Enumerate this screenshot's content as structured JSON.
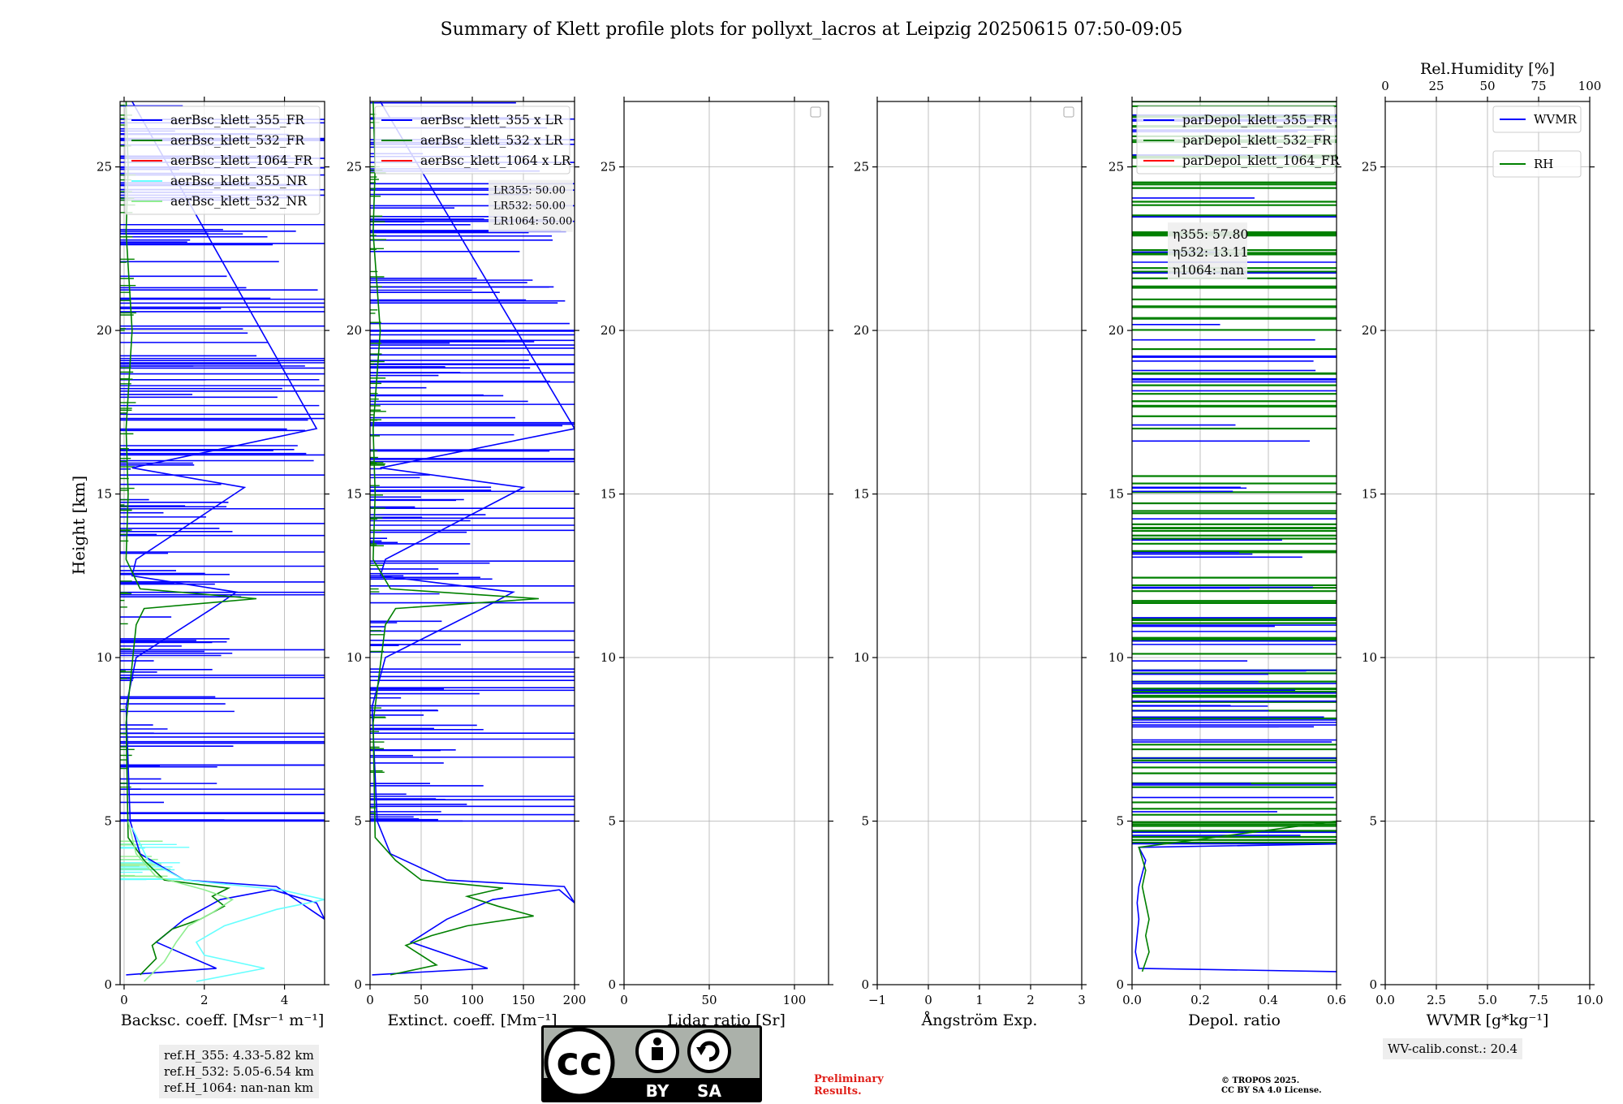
{
  "title": "Summary of Klett profile plots for pollyxt_lacros at Leipzig 20250615 07:50-09:05",
  "ylabel": "Height [km]",
  "colors": {
    "blue": "#0000ff",
    "green": "#008000",
    "red": "#ff0000",
    "cyan": "#66ffff",
    "lightgreen": "#90ee90"
  },
  "chart_data": [
    {
      "type": "line",
      "xlabel": "Backsc. coeff. [Msr⁻¹ m⁻¹]",
      "xlim": [
        -0.1,
        5
      ],
      "ylim": [
        0,
        27
      ],
      "xticks": [
        "0",
        "2",
        "4"
      ],
      "xtick_values": [
        0,
        2,
        4
      ],
      "yticks": [
        "0",
        "5",
        "10",
        "15",
        "20",
        "25"
      ],
      "ytick_values": [
        0,
        5,
        10,
        15,
        20,
        25
      ],
      "legend": [
        {
          "label": "aerBsc_klett_355_FR",
          "color": "#0000ff"
        },
        {
          "label": "aerBsc_klett_532_FR",
          "color": "#008000"
        },
        {
          "label": "aerBsc_klett_1064_FR",
          "color": "#ff0000"
        },
        {
          "label": "aerBsc_klett_355_NR",
          "color": "#66ffff"
        },
        {
          "label": "aerBsc_klett_532_NR",
          "color": "#90ee90"
        }
      ],
      "series": [
        {
          "name": "aerBsc_klett_355_FR",
          "color": "#0000ff",
          "x": [
            0.05,
            2.3,
            0.8,
            1.5,
            2.4,
            3.7,
            4.8,
            5.0,
            3.8,
            1.5,
            0.4,
            0.15,
            0.05,
            0.3,
            2.2,
            2.8,
            0.2,
            0.3,
            3.0,
            0.2,
            4.8,
            0.2
          ],
          "y": [
            0.3,
            0.5,
            1.3,
            2.0,
            2.6,
            2.9,
            2.5,
            2.0,
            3.0,
            3.2,
            4.0,
            5.0,
            8.5,
            10.0,
            11.5,
            12.0,
            12.5,
            13.0,
            15.2,
            15.8,
            17.0,
            27.0
          ]
        },
        {
          "name": "aerBsc_klett_532_FR",
          "color": "#008000",
          "x": [
            0.4,
            0.8,
            0.7,
            1.2,
            1.9,
            2.5,
            2.2,
            2.6,
            1.0,
            0.5,
            0.1,
            0.05,
            0.3,
            0.5,
            3.3,
            0.4,
            0.05,
            0.1,
            0.05,
            0.2,
            0.05,
            0.1,
            0.05
          ],
          "y": [
            0.3,
            0.8,
            1.2,
            1.7,
            2.0,
            2.4,
            2.7,
            2.95,
            3.2,
            3.8,
            4.5,
            8.0,
            11.0,
            11.5,
            11.8,
            12.1,
            13.0,
            15.0,
            17.0,
            20.0,
            23.0,
            25.0,
            27.0
          ]
        },
        {
          "name": "aerBsc_klett_355_NR",
          "color": "#66ffff",
          "x": [
            1.8,
            3.5,
            2.0,
            1.8,
            2.5,
            3.8,
            5.0,
            3.9,
            1.5,
            0.6,
            0.2
          ],
          "y": [
            0.1,
            0.5,
            0.9,
            1.3,
            1.8,
            2.3,
            2.6,
            2.9,
            3.2,
            3.8,
            4.8
          ]
        },
        {
          "name": "aerBsc_klett_532_NR",
          "color": "#90ee90",
          "x": [
            0.5,
            1.0,
            1.3,
            1.6,
            2.2,
            2.7,
            2.0,
            0.8,
            0.3,
            0.1
          ],
          "y": [
            0.1,
            0.7,
            1.3,
            1.8,
            2.2,
            2.6,
            2.9,
            3.3,
            4.0,
            5.0
          ]
        }
      ]
    },
    {
      "type": "line",
      "xlabel": "Extinct. coeff. [Mm⁻¹]",
      "xlim": [
        0,
        200
      ],
      "ylim": [
        0,
        27
      ],
      "xticks": [
        "0",
        "50",
        "100",
        "150",
        "200"
      ],
      "xtick_values": [
        0,
        50,
        100,
        150,
        200
      ],
      "yticks": [
        "0",
        "5",
        "10",
        "15",
        "20",
        "25"
      ],
      "ytick_values": [
        0,
        5,
        10,
        15,
        20,
        25
      ],
      "legend": [
        {
          "label": "aerBsc_klett_355 x LR",
          "color": "#0000ff"
        },
        {
          "label": "aerBsc_klett_532 x LR",
          "color": "#008000"
        },
        {
          "label": "aerBsc_klett_1064 x LR",
          "color": "#ff0000"
        }
      ],
      "annotation": [
        "LR355: 50.00",
        "LR532: 50.00",
        "LR1064: 50.00"
      ],
      "series": [
        {
          "name": "aerBsc_klett_355 x LR",
          "color": "#0000ff",
          "x": [
            2,
            115,
            40,
            75,
            120,
            185,
            200,
            190,
            75,
            20,
            7,
            2,
            15,
            110,
            140,
            10,
            15,
            150,
            10,
            200,
            10
          ],
          "y": [
            0.3,
            0.5,
            1.3,
            2.0,
            2.6,
            2.9,
            2.5,
            3.0,
            3.2,
            4.0,
            5.0,
            8.5,
            10.0,
            11.5,
            12.0,
            12.5,
            13.0,
            15.2,
            15.8,
            17.0,
            27.0
          ]
        },
        {
          "name": "aerBsc_klett_532 x LR",
          "color": "#008000",
          "x": [
            20,
            65,
            50,
            35,
            60,
            95,
            160,
            125,
            95,
            130,
            50,
            25,
            5,
            3,
            15,
            25,
            165,
            20,
            3,
            5,
            3,
            10,
            3,
            5,
            3
          ],
          "y": [
            0.3,
            0.6,
            0.9,
            1.2,
            1.5,
            1.8,
            2.1,
            2.4,
            2.7,
            2.95,
            3.2,
            3.8,
            4.5,
            8.0,
            11.0,
            11.5,
            11.8,
            12.1,
            13.0,
            15.0,
            17.0,
            20.0,
            23.0,
            25.0,
            27.0
          ]
        }
      ]
    },
    {
      "type": "line",
      "xlabel": "Lidar ratio [Sr]",
      "xlim": [
        0,
        120
      ],
      "ylim": [
        0,
        27
      ],
      "xticks": [
        "0",
        "50",
        "100"
      ],
      "xtick_values": [
        0,
        50,
        100
      ],
      "yticks": [
        "0",
        "5",
        "10",
        "15",
        "20",
        "25"
      ],
      "ytick_values": [
        0,
        5,
        10,
        15,
        20,
        25
      ],
      "legend": [],
      "series": []
    },
    {
      "type": "line",
      "xlabel": "Ångström Exp.",
      "xlim": [
        -1,
        3
      ],
      "ylim": [
        0,
        27
      ],
      "xticks": [
        "−1",
        "0",
        "1",
        "2",
        "3"
      ],
      "xtick_values": [
        -1,
        0,
        1,
        2,
        3
      ],
      "yticks": [
        "0",
        "5",
        "10",
        "15",
        "20",
        "25"
      ],
      "ytick_values": [
        0,
        5,
        10,
        15,
        20,
        25
      ],
      "legend": [],
      "series": []
    },
    {
      "type": "line",
      "xlabel": "Depol. ratio",
      "xlim": [
        0,
        0.6
      ],
      "ylim": [
        0,
        27
      ],
      "xticks": [
        "0.0",
        "0.2",
        "0.4",
        "0.6"
      ],
      "xtick_values": [
        0,
        0.2,
        0.4,
        0.6
      ],
      "yticks": [
        "0",
        "5",
        "10",
        "15",
        "20",
        "25"
      ],
      "ytick_values": [
        0,
        5,
        10,
        15,
        20,
        25
      ],
      "legend": [
        {
          "label": "parDepol_klett_355_FR",
          "color": "#0000ff"
        },
        {
          "label": "parDepol_klett_532_FR",
          "color": "#008000"
        },
        {
          "label": "parDepol_klett_1064_FR",
          "color": "#ff0000"
        }
      ],
      "annotation": [
        "η355: 57.80",
        "η532: 13.11",
        "η1064: nan"
      ],
      "series": [
        {
          "name": "parDepol_klett_355_FR",
          "color": "#0000ff",
          "x": [
            0.6,
            0.02,
            0.01,
            0.02,
            0.015,
            0.02,
            0.04,
            0.02,
            0.6
          ],
          "y": [
            0.4,
            0.5,
            1.0,
            2.0,
            2.5,
            3.0,
            3.8,
            4.2,
            4.3
          ]
        },
        {
          "name": "parDepol_klett_532_FR",
          "color": "#008000",
          "x": [
            0.03,
            0.05,
            0.04,
            0.05,
            0.03,
            0.04,
            0.02,
            0.6
          ],
          "y": [
            0.4,
            1.0,
            1.5,
            2.0,
            3.0,
            3.5,
            4.2,
            5.0
          ]
        }
      ]
    },
    {
      "type": "line",
      "xlabel": "WVMR [g*kg⁻¹]",
      "xlim": [
        0,
        10
      ],
      "ylim": [
        0,
        27
      ],
      "xticks": [
        "0.0",
        "2.5",
        "5.0",
        "7.5",
        "10.0"
      ],
      "xtick_values": [
        0,
        2.5,
        5,
        7.5,
        10
      ],
      "yticks": [
        "0",
        "5",
        "10",
        "15",
        "20",
        "25"
      ],
      "ytick_values": [
        0,
        5,
        10,
        15,
        20,
        25
      ],
      "x2label": "Rel.Humidity [%]",
      "x2ticks": [
        "0",
        "25",
        "50",
        "75",
        "100"
      ],
      "x2tick_values": [
        0,
        25,
        50,
        75,
        100
      ],
      "legend": [
        {
          "label": "WVMR",
          "color": "#0000ff"
        },
        {
          "label": "RH",
          "color": "#008000"
        }
      ],
      "series": []
    }
  ],
  "info": {
    "refH": [
      "ref.H_355: 4.33-5.82 km",
      "ref.H_532: 5.05-6.54 km",
      "ref.H_1064: nan-nan km"
    ],
    "wv_calib": "WV-calib.const.: 20.4",
    "preliminary": [
      "Preliminary",
      "Results."
    ],
    "copyright": [
      "© TROPOS 2025.",
      "CC BY SA 4.0 License."
    ],
    "cc_badge": {
      "text_cc": "cc",
      "text_by": "BY",
      "text_sa": "SA"
    }
  }
}
